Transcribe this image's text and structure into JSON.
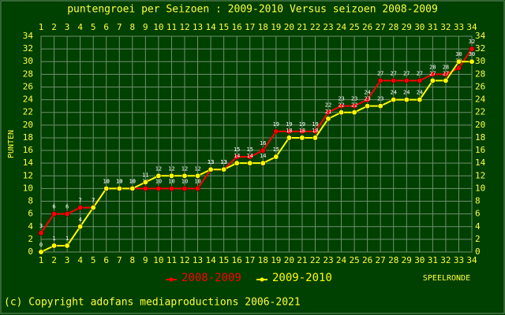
{
  "chart_data": {
    "type": "line",
    "title": "puntengroei per Seizoen : 2009-2010 Versus seizoen 2008-2009",
    "y_label": "PUNTEN",
    "x_label": "SPEELRONDE",
    "footer": "(c) Copyright adofans mediaproductions 2006-2021",
    "x": [
      1,
      2,
      3,
      4,
      5,
      6,
      7,
      8,
      9,
      10,
      11,
      12,
      13,
      14,
      15,
      16,
      17,
      18,
      19,
      20,
      21,
      22,
      23,
      24,
      25,
      26,
      27,
      28,
      29,
      30,
      31,
      32,
      33,
      34
    ],
    "xlim": [
      1,
      34
    ],
    "xticks": [
      1,
      2,
      3,
      4,
      5,
      6,
      7,
      8,
      9,
      10,
      11,
      12,
      13,
      14,
      15,
      16,
      17,
      18,
      19,
      20,
      21,
      22,
      23,
      24,
      25,
      26,
      27,
      28,
      29,
      30,
      31,
      32,
      33,
      34
    ],
    "ylim": [
      0,
      34
    ],
    "yticks": [
      0,
      2,
      4,
      6,
      8,
      10,
      12,
      14,
      16,
      18,
      20,
      22,
      24,
      26,
      28,
      30,
      32,
      34
    ],
    "grid": true,
    "series": [
      {
        "name": "2008-2009",
        "color": "#ff0000",
        "values": [
          3,
          6,
          6,
          7,
          7,
          10,
          10,
          10,
          10,
          10,
          10,
          10,
          10,
          13,
          13,
          15,
          15,
          16,
          19,
          19,
          19,
          19,
          22,
          23,
          23,
          24,
          27,
          27,
          27,
          27,
          28,
          28,
          29,
          32
        ]
      },
      {
        "name": "2009-2010",
        "color": "#ffff00",
        "values": [
          0,
          1,
          1,
          4,
          7,
          10,
          10,
          10,
          11,
          12,
          12,
          12,
          12,
          13,
          13,
          14,
          14,
          14,
          15,
          18,
          18,
          18,
          21,
          22,
          22,
          23,
          23,
          24,
          24,
          24,
          27,
          27,
          30,
          30
        ]
      }
    ]
  }
}
